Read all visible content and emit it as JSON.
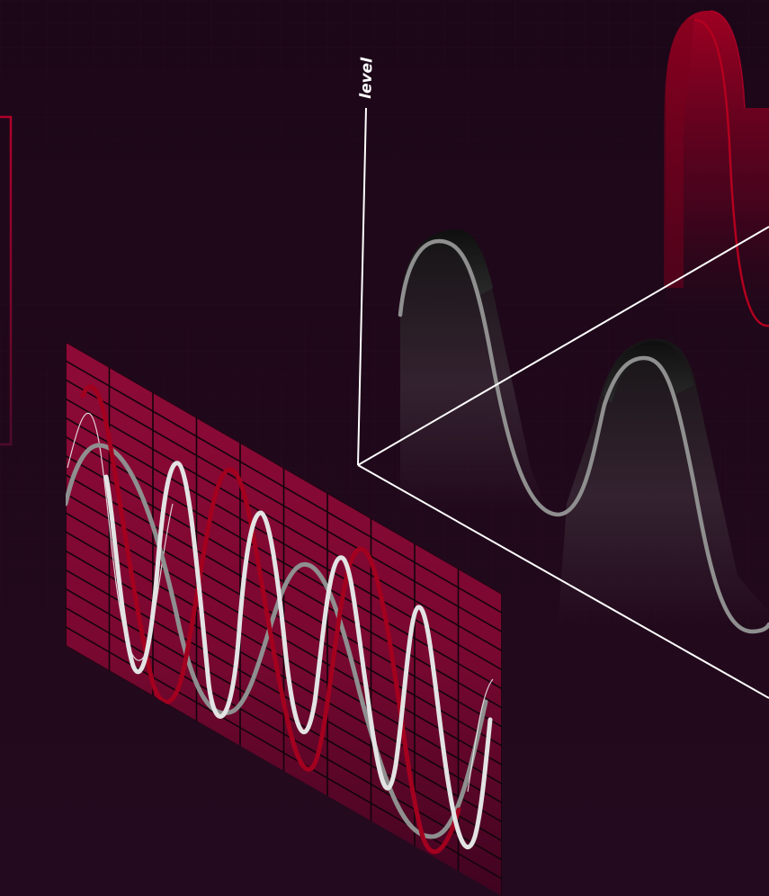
{
  "axis": {
    "vertical_label": "level"
  },
  "colors": {
    "background": "#1c0718",
    "grid_panel": "#8a0a35",
    "grid_panel_dark": "#450420",
    "grid_line": "#12040c",
    "accent_red": "#a3001f",
    "white_wave": "#e3e3e3",
    "grey_wave": "#8f8f8f",
    "axis_line": "#ffffff"
  },
  "icons": {
    "bracket": "red-bracket-connector",
    "panel": "waveform-grid-panel",
    "axes": "isometric-3d-axes"
  }
}
